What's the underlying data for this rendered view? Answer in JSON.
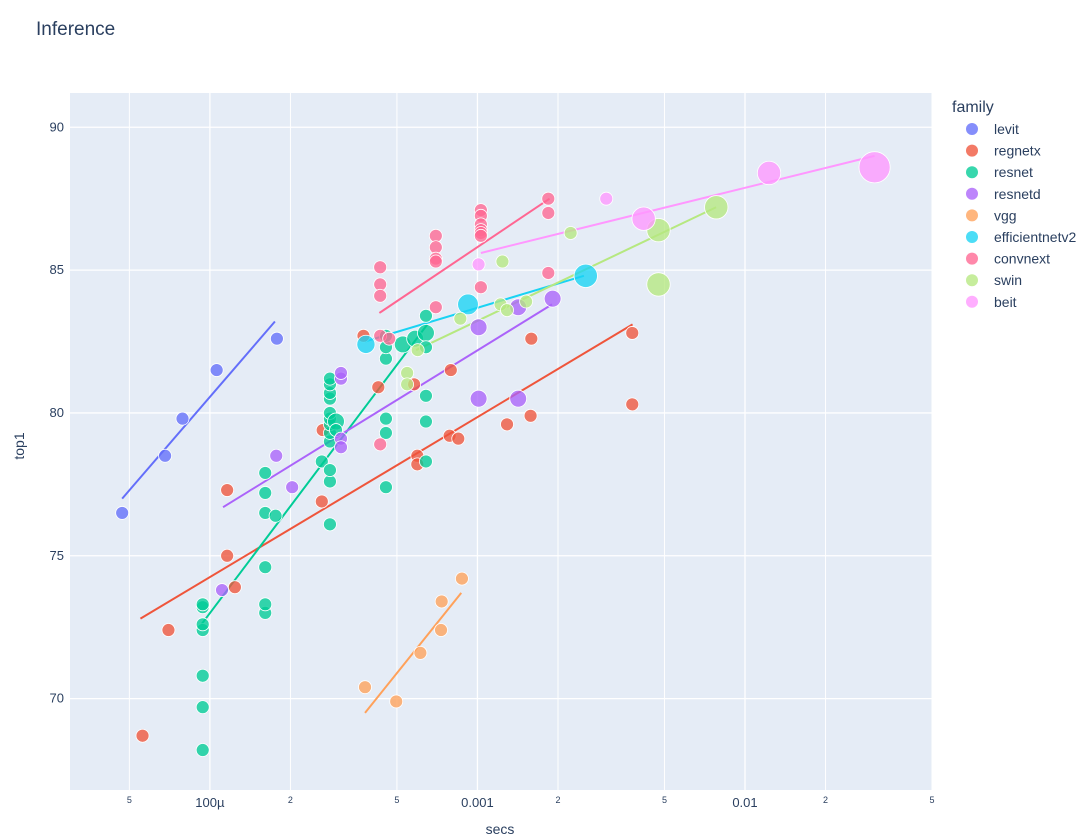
{
  "chart_data": {
    "type": "scatter",
    "title": "Inference",
    "xlabel": "secs",
    "ylabel": "top1",
    "x_scale": "log",
    "xlim": [
      3e-05,
      0.05
    ],
    "ylim": [
      66.8,
      91.2
    ],
    "y_ticks": [
      70,
      75,
      80,
      85,
      90
    ],
    "x_major_ticks": [
      {
        "value": 0.0001,
        "label": "100µ"
      },
      {
        "value": 0.001,
        "label": "0.001"
      },
      {
        "value": 0.01,
        "label": "0.01"
      }
    ],
    "x_minor_ticks": [
      {
        "value": 5e-05,
        "label": "5"
      },
      {
        "value": 0.0002,
        "label": "2"
      },
      {
        "value": 0.0005,
        "label": "5"
      },
      {
        "value": 0.002,
        "label": "2"
      },
      {
        "value": 0.005,
        "label": "5"
      },
      {
        "value": 0.02,
        "label": "2"
      },
      {
        "value": 0.05,
        "label": "5"
      }
    ],
    "grid": true,
    "legend_title": "family",
    "legend_position": "right",
    "series": [
      {
        "name": "levit",
        "color": "#636efa",
        "points": [
          [
            4.7e-05,
            76.5
          ],
          [
            6.8e-05,
            78.5
          ],
          [
            7.9e-05,
            79.8
          ],
          [
            0.000106,
            81.5
          ],
          [
            0.000178,
            82.6
          ]
        ],
        "sizes": [
          1,
          1,
          1,
          1,
          1
        ],
        "trend": [
          [
            4.7e-05,
            77.0
          ],
          [
            0.000175,
            83.2
          ]
        ]
      },
      {
        "name": "regnetx",
        "color": "#ef553b",
        "points": [
          [
            5.6e-05,
            68.7
          ],
          [
            7e-05,
            72.4
          ],
          [
            0.000116,
            77.3
          ],
          [
            0.000116,
            75.0
          ],
          [
            0.000124,
            73.9
          ],
          [
            0.000262,
            76.9
          ],
          [
            0.000264,
            79.4
          ],
          [
            0.000375,
            82.7
          ],
          [
            0.000426,
            80.9
          ],
          [
            0.000596,
            78.5
          ],
          [
            0.000596,
            78.2
          ],
          [
            0.00058,
            81.0
          ],
          [
            0.000795,
            81.5
          ],
          [
            0.000787,
            79.2
          ],
          [
            0.000848,
            79.1
          ],
          [
            0.00129,
            79.6
          ],
          [
            0.00159,
            82.6
          ],
          [
            0.00158,
            79.9
          ],
          [
            0.00379,
            82.8
          ],
          [
            0.00379,
            80.3
          ]
        ],
        "sizes": [
          1,
          1,
          1,
          1,
          1,
          1,
          1,
          1,
          1,
          1,
          1,
          1,
          1,
          1,
          1,
          1,
          1,
          1,
          1,
          1
        ],
        "trend": [
          [
            5.5e-05,
            72.8
          ],
          [
            0.0038,
            83.1
          ]
        ]
      },
      {
        "name": "resnet",
        "color": "#00cc96",
        "points": [
          [
            9.4e-05,
            68.2
          ],
          [
            9.4e-05,
            69.7
          ],
          [
            9.4e-05,
            70.8
          ],
          [
            9.4e-05,
            72.4
          ],
          [
            9.4e-05,
            72.6
          ],
          [
            9.4e-05,
            73.2
          ],
          [
            9.4e-05,
            73.3
          ],
          [
            0.000161,
            73.0
          ],
          [
            0.000161,
            73.3
          ],
          [
            0.000161,
            74.6
          ],
          [
            0.000161,
            76.5
          ],
          [
            0.000161,
            77.2
          ],
          [
            0.000161,
            77.9
          ],
          [
            0.000176,
            76.4
          ],
          [
            0.000262,
            78.3
          ],
          [
            0.000281,
            76.1
          ],
          [
            0.000281,
            77.6
          ],
          [
            0.000281,
            78.0
          ],
          [
            0.000281,
            79.0
          ],
          [
            0.000281,
            79.3
          ],
          [
            0.000281,
            79.6
          ],
          [
            0.000281,
            79.8
          ],
          [
            0.000281,
            80.0
          ],
          [
            0.000281,
            80.5
          ],
          [
            0.000281,
            80.7
          ],
          [
            0.000281,
            81.0
          ],
          [
            0.000281,
            81.2
          ],
          [
            0.000296,
            79.7
          ],
          [
            0.000296,
            79.4
          ],
          [
            0.000455,
            77.4
          ],
          [
            0.000455,
            79.3
          ],
          [
            0.000455,
            79.8
          ],
          [
            0.000455,
            81.9
          ],
          [
            0.000455,
            82.3
          ],
          [
            0.000455,
            82.7
          ],
          [
            0.000526,
            82.4
          ],
          [
            0.000585,
            82.6
          ],
          [
            0.000642,
            82.8
          ],
          [
            0.000642,
            82.3
          ],
          [
            0.000642,
            83.4
          ],
          [
            0.000642,
            80.6
          ],
          [
            0.000642,
            79.7
          ],
          [
            0.000642,
            78.3
          ]
        ],
        "sizes": [
          1,
          1,
          1,
          1,
          1,
          1,
          1,
          1,
          1,
          1,
          1,
          1,
          1,
          1,
          1,
          1,
          1,
          1,
          1,
          1,
          1,
          1,
          1,
          1,
          1,
          1,
          1,
          1.3,
          1,
          1,
          1,
          1,
          1,
          1,
          1,
          1.3,
          1.3,
          1.3,
          1,
          1,
          1,
          1,
          1
        ],
        "trend": [
          [
            9.3e-05,
            72.6
          ],
          [
            0.00065,
            83.1
          ]
        ]
      },
      {
        "name": "resnetd",
        "color": "#ab63fa",
        "points": [
          [
            0.000111,
            73.8
          ],
          [
            0.000177,
            78.5
          ],
          [
            0.000203,
            77.4
          ],
          [
            0.000309,
            79.1
          ],
          [
            0.000309,
            78.8
          ],
          [
            0.000309,
            81.2
          ],
          [
            0.000309,
            81.4
          ],
          [
            0.00101,
            83.0
          ],
          [
            0.00101,
            80.5
          ],
          [
            0.00142,
            80.5
          ],
          [
            0.00142,
            83.7
          ],
          [
            0.00191,
            84.0
          ]
        ],
        "sizes": [
          1,
          1,
          1,
          1,
          1,
          1,
          1,
          1.3,
          1.3,
          1.3,
          1.3,
          1.3
        ],
        "trend": [
          [
            0.000112,
            76.7
          ],
          [
            0.0019,
            83.8
          ]
        ]
      },
      {
        "name": "vgg",
        "color": "#ffa15a",
        "points": [
          [
            0.00038,
            70.4
          ],
          [
            0.000497,
            69.9
          ],
          [
            0.000612,
            71.6
          ],
          [
            0.000731,
            72.4
          ],
          [
            0.000735,
            73.4
          ],
          [
            0.000875,
            74.2
          ]
        ],
        "sizes": [
          1,
          1,
          1,
          1,
          1,
          1
        ],
        "trend": [
          [
            0.00038,
            69.5
          ],
          [
            0.00087,
            73.7
          ]
        ]
      },
      {
        "name": "efficientnetv2",
        "color": "#19d3f3",
        "points": [
          [
            0.000383,
            82.4
          ],
          [
            0.000922,
            83.8
          ],
          [
            0.00254,
            84.8
          ]
        ],
        "sizes": [
          1.4,
          1.6,
          1.8
        ],
        "trend": [
          [
            0.00038,
            82.5
          ],
          [
            0.0025,
            84.8
          ]
        ]
      },
      {
        "name": "convnext",
        "color": "#ff6692",
        "points": [
          [
            0.000433,
            85.1
          ],
          [
            0.000433,
            84.5
          ],
          [
            0.000433,
            84.1
          ],
          [
            0.000433,
            82.7
          ],
          [
            0.000433,
            78.9
          ],
          [
            0.000468,
            82.6
          ],
          [
            0.000699,
            86.2
          ],
          [
            0.000699,
            85.8
          ],
          [
            0.000699,
            85.4
          ],
          [
            0.000699,
            85.3
          ],
          [
            0.000699,
            83.7
          ],
          [
            0.00103,
            87.1
          ],
          [
            0.00103,
            86.9
          ],
          [
            0.00103,
            86.6
          ],
          [
            0.00103,
            86.4
          ],
          [
            0.00103,
            86.3
          ],
          [
            0.00103,
            86.2
          ],
          [
            0.00103,
            84.4
          ],
          [
            0.00184,
            87.5
          ],
          [
            0.00184,
            87.0
          ],
          [
            0.00184,
            84.9
          ]
        ],
        "sizes": [
          1,
          1,
          1,
          1,
          1,
          1,
          1,
          1,
          1,
          1,
          1,
          1,
          1,
          1,
          1,
          1,
          1,
          1,
          1,
          1,
          1
        ],
        "trend": [
          [
            0.00043,
            83.5
          ],
          [
            0.00186,
            87.5
          ]
        ]
      },
      {
        "name": "swin",
        "color": "#b6e880",
        "points": [
          [
            0.000546,
            81.4
          ],
          [
            0.000546,
            81.0
          ],
          [
            0.000598,
            82.2
          ],
          [
            0.000863,
            83.3
          ],
          [
            0.00124,
            85.3
          ],
          [
            0.00122,
            83.8
          ],
          [
            0.00129,
            83.6
          ],
          [
            0.00152,
            83.9
          ],
          [
            0.00223,
            86.3
          ],
          [
            0.00475,
            86.4
          ],
          [
            0.00475,
            84.5
          ],
          [
            0.00781,
            87.2
          ]
        ],
        "sizes": [
          1,
          1,
          1,
          1,
          1,
          1,
          1,
          1,
          1,
          1.8,
          1.8,
          1.8
        ],
        "trend": [
          [
            0.00059,
            82.2
          ],
          [
            0.0078,
            87.2
          ]
        ]
      },
      {
        "name": "beit",
        "color": "#ff97ff",
        "points": [
          [
            0.00101,
            85.2
          ],
          [
            0.00303,
            87.5
          ],
          [
            0.00418,
            86.8
          ],
          [
            0.0123,
            88.4
          ],
          [
            0.0305,
            88.6
          ]
        ],
        "sizes": [
          1,
          1,
          1.8,
          1.8,
          2.4
        ],
        "trend": [
          [
            0.00103,
            85.6
          ],
          [
            0.0305,
            89.0
          ]
        ]
      }
    ]
  }
}
